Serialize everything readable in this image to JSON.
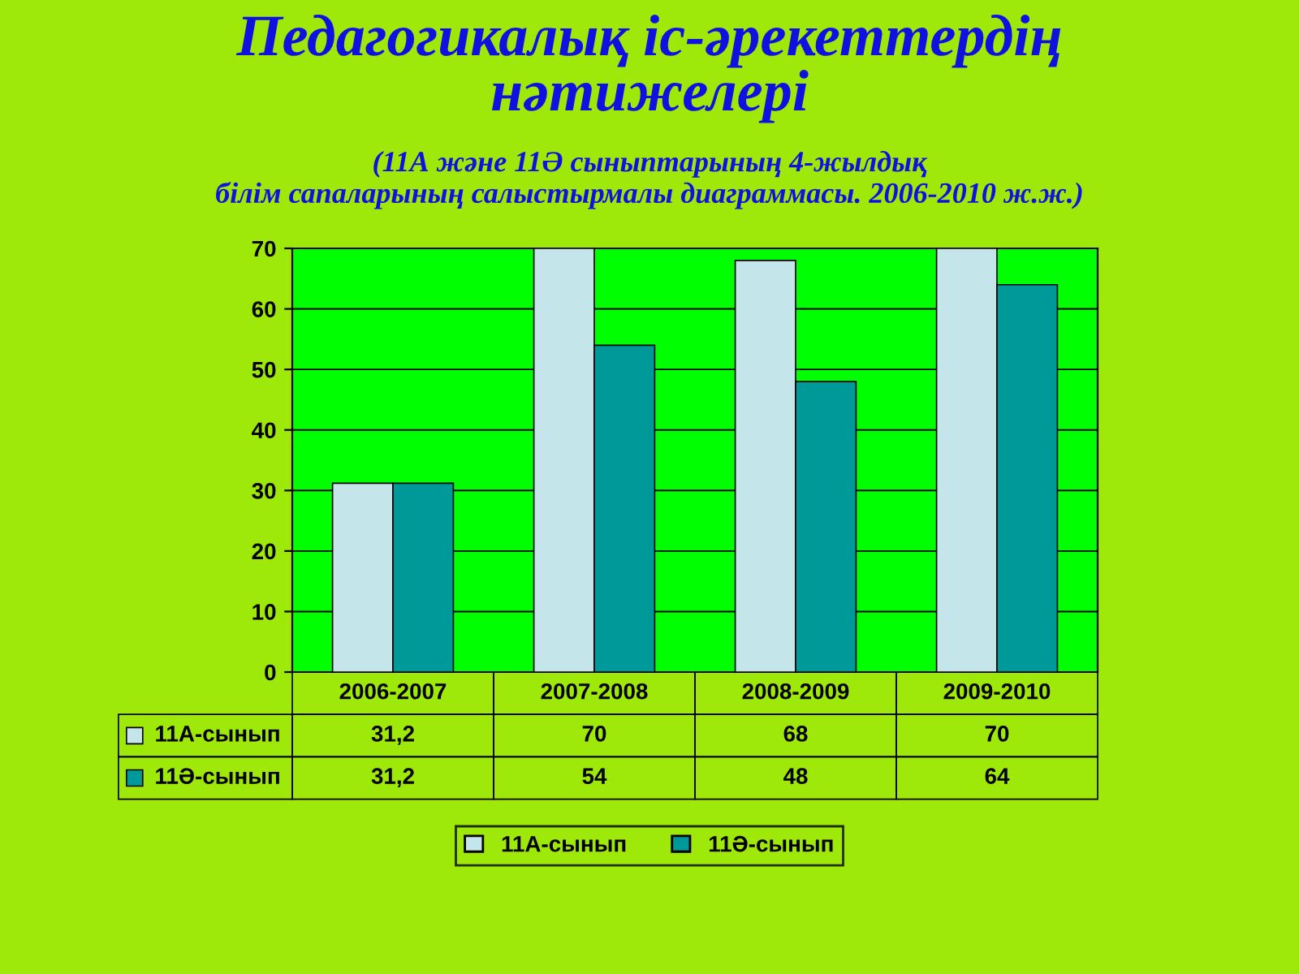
{
  "chart_data": {
    "type": "bar",
    "title": "Педагогикалық іс-әрекеттердің\nнәтижелері",
    "subtitle": "(11А және 11Ә сыныптарының 4-жылдық\nбілім сапаларының салыстырмалы диаграммасы. 2006-2010 ж.ж.)",
    "categories": [
      "2006-2007",
      "2007-2008",
      "2008-2009",
      "2009-2010"
    ],
    "series": [
      {
        "name": "11А-сынып",
        "color": "#c4e6ea",
        "values": [
          31.2,
          70,
          68,
          70
        ],
        "value_labels": [
          "31,2",
          "70",
          "68",
          "70"
        ]
      },
      {
        "name": "11Ә-сынып",
        "color": "#009999",
        "values": [
          31.2,
          54,
          48,
          64
        ],
        "value_labels": [
          "31,2",
          "54",
          "48",
          "64"
        ]
      }
    ],
    "ylim": [
      0,
      70
    ],
    "yticks": [
      0,
      10,
      20,
      30,
      40,
      50,
      60,
      70
    ],
    "grid": "y",
    "legend": "bottom"
  }
}
